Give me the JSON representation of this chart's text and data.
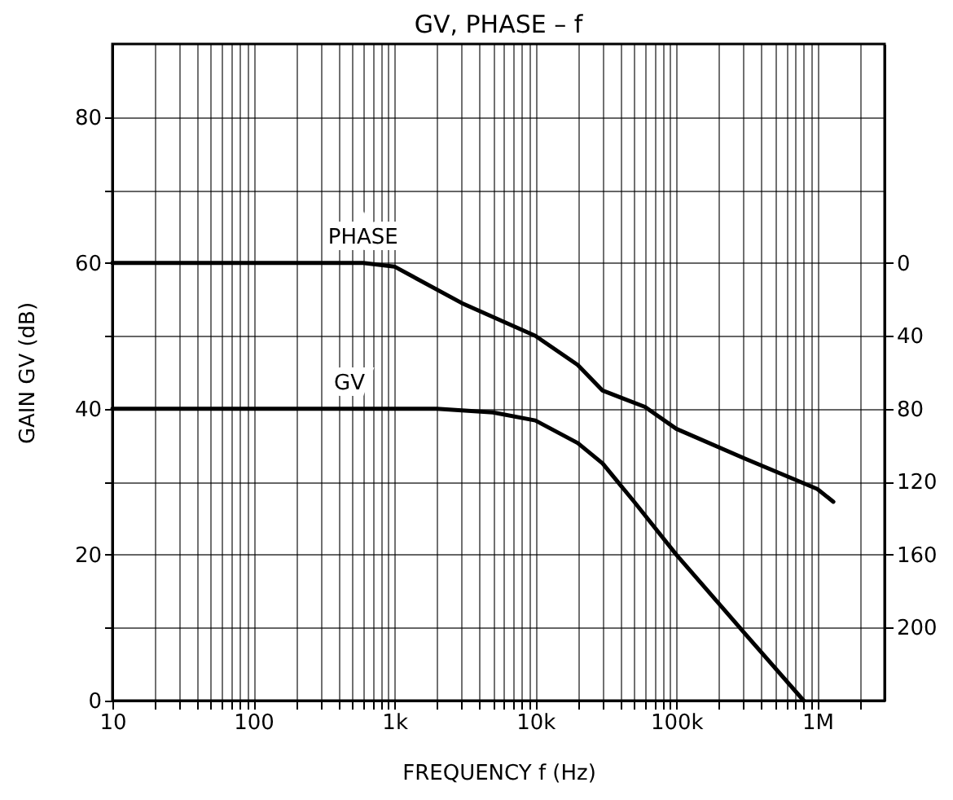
{
  "chart_data": {
    "type": "line",
    "title": "GV, PHASE – f",
    "xlabel": "FREQUENCY   f   (Hz)",
    "ylabel": "GAIN   GV   (dB)",
    "log": "x",
    "grid": true,
    "legend": false,
    "line_style": "solid",
    "marker": "none",
    "xlim": [
      10,
      3000000
    ],
    "xticks": [
      10,
      {
        "value": 20,
        "label": null
      },
      {
        "value": 30,
        "label": null
      },
      {
        "value": 40,
        "label": null
      },
      {
        "value": 50,
        "label": null
      },
      {
        "value": 60,
        "label": null
      },
      {
        "value": 70,
        "label": null
      },
      {
        "value": 80,
        "label": null
      },
      {
        "value": 90,
        "label": null
      },
      100,
      {
        "value": 200,
        "label": null
      },
      {
        "value": 300,
        "label": null
      },
      {
        "value": 400,
        "label": null
      },
      {
        "value": 500,
        "label": null
      },
      {
        "value": 600,
        "label": null
      },
      {
        "value": 700,
        "label": null
      },
      {
        "value": 800,
        "label": null
      },
      {
        "value": 900,
        "label": null
      },
      {
        "value": 1000,
        "label": "1k"
      },
      {
        "value": 2000,
        "label": null
      },
      {
        "value": 3000,
        "label": null
      },
      {
        "value": 4000,
        "label": null
      },
      {
        "value": 5000,
        "label": null
      },
      {
        "value": 6000,
        "label": null
      },
      {
        "value": 7000,
        "label": null
      },
      {
        "value": 8000,
        "label": null
      },
      {
        "value": 9000,
        "label": null
      },
      {
        "value": 10000,
        "label": "10k"
      },
      {
        "value": 20000,
        "label": null
      },
      {
        "value": 30000,
        "label": null
      },
      {
        "value": 40000,
        "label": null
      },
      {
        "value": 50000,
        "label": null
      },
      {
        "value": 60000,
        "label": null
      },
      {
        "value": 70000,
        "label": null
      },
      {
        "value": 80000,
        "label": null
      },
      {
        "value": 90000,
        "label": null
      },
      {
        "value": 100000,
        "label": "100k"
      },
      {
        "value": 200000,
        "label": null
      },
      {
        "value": 300000,
        "label": null
      },
      {
        "value": 400000,
        "label": null
      },
      {
        "value": 500000,
        "label": null
      },
      {
        "value": 600000,
        "label": null
      },
      {
        "value": 700000,
        "label": null
      },
      {
        "value": 800000,
        "label": null
      },
      {
        "value": 900000,
        "label": null
      },
      {
        "value": 1000000,
        "label": "1M"
      },
      {
        "value": 2000000,
        "label": null
      }
    ],
    "ylim": [
      0,
      90
    ],
    "yticks": [
      0,
      {
        "value": 10,
        "label": null
      },
      20,
      {
        "value": 30,
        "label": null
      },
      40,
      {
        "value": 50,
        "label": null
      },
      60,
      {
        "value": 70,
        "label": null
      },
      80
    ],
    "y2lim": [
      240,
      -120
    ],
    "y2ticks": [
      0,
      40,
      80,
      120,
      160,
      200
    ],
    "series": [
      {
        "name": "PHASE",
        "color": "#000000",
        "axis": "y2",
        "x": [
          10,
          600,
          1000,
          3000,
          10000,
          20000,
          30000,
          60000,
          100000,
          300000,
          1000000,
          1300000
        ],
        "values": [
          0,
          0,
          2,
          22,
          40,
          56,
          70,
          79,
          91,
          107,
          124,
          131
        ]
      },
      {
        "name": "GV",
        "color": "#000000",
        "x": [
          10,
          480,
          2000,
          5000,
          10000,
          20000,
          30000,
          50000,
          100000,
          300000,
          800000
        ],
        "values": [
          40,
          40,
          40,
          39.5,
          38.4,
          35.3,
          32.5,
          27.3,
          20,
          9.4,
          0
        ]
      }
    ]
  }
}
